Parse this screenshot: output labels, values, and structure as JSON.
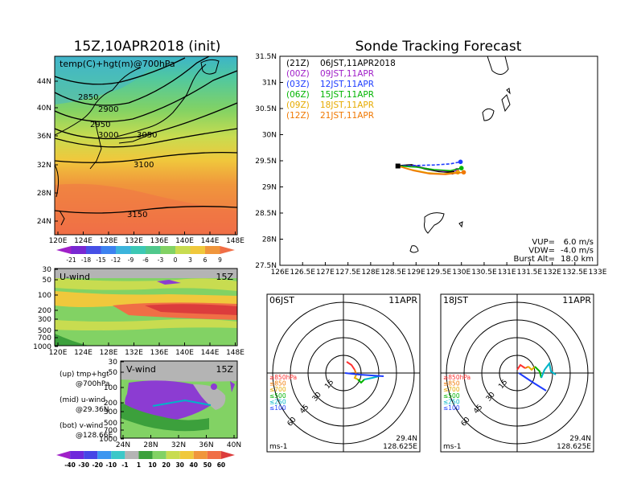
{
  "left_title": "15Z,10APR2018 (init)",
  "right_title": "Sonde Tracking Forecast",
  "map_panel": {
    "label": "temp(C)+hgt(m)@700hPa",
    "lat_labels": [
      "44N",
      "40N",
      "36N",
      "32N",
      "28N",
      "24N"
    ],
    "lon_labels": [
      "120E",
      "124E",
      "128E",
      "132E",
      "136E",
      "140E",
      "144E",
      "148E"
    ],
    "contour_labels": [
      "2850",
      "2900",
      "2950",
      "3000",
      "3050",
      "3100",
      "3150"
    ],
    "colorbar_labels": [
      "-21",
      "-18",
      "-15",
      "-12",
      "-9",
      "-6",
      "-3",
      "0",
      "3",
      "6",
      "9"
    ]
  },
  "uwind_panel": {
    "label": "U-wind",
    "time": "15Z",
    "p_labels": [
      "30",
      "50",
      "100",
      "200",
      "300",
      "500",
      "700",
      "1000"
    ],
    "lon_labels": [
      "120E",
      "124E",
      "128E",
      "132E",
      "136E",
      "140E",
      "144E",
      "148E"
    ]
  },
  "vwind_panel": {
    "label": "V-wind",
    "time": "15Z",
    "p_labels": [
      "30",
      "50",
      "100",
      "200",
      "300",
      "500",
      "700",
      "1000"
    ],
    "lat_labels": [
      "24N",
      "28N",
      "32N",
      "36N",
      "40N"
    ]
  },
  "notes": [
    {
      "head": "(up) tmp+hgt",
      "sub": "@700hPa"
    },
    {
      "head": "(mid) u-wind",
      "sub": "@29.36N"
    },
    {
      "head": "(bot) v-wind",
      "sub": "@128.66E"
    }
  ],
  "wind_colorbar_labels": [
    "-40",
    "-30",
    "-20",
    "-10",
    "-1",
    "1",
    "10",
    "20",
    "30",
    "40",
    "50",
    "60"
  ],
  "track_panel": {
    "lat_labels": [
      "31.5N",
      "31N",
      "30.5N",
      "30N",
      "29.5N",
      "29N",
      "28.5N",
      "28N",
      "27.5N"
    ],
    "lon_labels": [
      "126E",
      "126.5E",
      "127E",
      "127.5E",
      "128E",
      "128.5E",
      "129E",
      "129.5E",
      "130E",
      "130.5E",
      "131E",
      "131.5E",
      "132E",
      "132.5E",
      "133E"
    ],
    "legend": [
      {
        "code": "(21Z)",
        "time": "06JST,11APR2018",
        "color": "#000000"
      },
      {
        "code": "(00Z)",
        "time": "09JST,11APR",
        "color": "#a020c8"
      },
      {
        "code": "(03Z)",
        "time": "12JST,11APR",
        "color": "#1e3cff"
      },
      {
        "code": "(06Z)",
        "time": "15JST,11APR",
        "color": "#00b400"
      },
      {
        "code": "(09Z)",
        "time": "18JST,11APR",
        "color": "#e6aa00"
      },
      {
        "code": "(12Z)",
        "time": "21JST,11APR",
        "color": "#f07800"
      }
    ],
    "params": [
      {
        "name": "VUP=",
        "value": "6.0 m/s"
      },
      {
        "name": "VDW=",
        "value": "-4.0 m/s"
      },
      {
        "name": "Burst Alt=",
        "value": "18.0 km"
      }
    ]
  },
  "hodo_left": {
    "time": "06JST",
    "date": "11APR",
    "ring_labels": [
      "15",
      "30",
      "45",
      "60"
    ],
    "units": "ms-1",
    "lat": "29.4N",
    "lon": "128.625E",
    "levels": [
      "≥850hPa",
      "≤850",
      "≤700",
      "≤500",
      "≤250",
      "≤100"
    ]
  },
  "hodo_right": {
    "time": "18JST",
    "date": "11APR",
    "ring_labels": [
      "15",
      "30",
      "45",
      "60"
    ],
    "units": "ms-1",
    "lat": "29.4N",
    "lon": "128.625E",
    "levels": [
      "≥850hPa",
      "≤850",
      "≤700",
      "≤500",
      "≤250",
      "≤100"
    ]
  },
  "level_colors": [
    "#ff3030",
    "#f07800",
    "#e6aa00",
    "#00b400",
    "#00b4c8",
    "#1e3cff"
  ],
  "chart_data": {
    "type": "line",
    "title": "Sonde Tracking Forecast",
    "xlim": [
      126,
      133
    ],
    "ylim": [
      27.5,
      31.5
    ],
    "series": [
      {
        "name": "(21Z)",
        "lon": [
          128.6,
          128.9,
          129.2,
          129.5,
          129.8
        ],
        "lat": [
          29.4,
          29.42,
          29.35,
          29.3,
          29.28
        ]
      },
      {
        "name": "(00Z)",
        "lon": [
          128.6,
          128.95,
          129.3,
          129.6,
          129.9
        ],
        "lat": [
          29.4,
          29.4,
          29.34,
          29.3,
          29.32
        ]
      },
      {
        "name": "(03Z)",
        "lon": [
          128.6,
          129.0,
          129.4,
          129.75,
          129.98
        ],
        "lat": [
          29.4,
          29.41,
          29.42,
          29.44,
          29.48
        ]
      },
      {
        "name": "(06Z)",
        "lon": [
          128.6,
          129.0,
          129.4,
          129.75,
          130.0
        ],
        "lat": [
          29.4,
          29.38,
          29.33,
          29.31,
          29.36
        ]
      },
      {
        "name": "(09Z)",
        "lon": [
          128.6,
          128.9,
          129.25,
          129.6,
          129.92
        ],
        "lat": [
          29.4,
          29.33,
          29.27,
          29.25,
          29.28
        ]
      },
      {
        "name": "(12Z)",
        "lon": [
          128.6,
          128.95,
          129.3,
          129.65,
          130.05
        ],
        "lat": [
          29.4,
          29.31,
          29.25,
          29.24,
          29.28
        ]
      }
    ]
  }
}
